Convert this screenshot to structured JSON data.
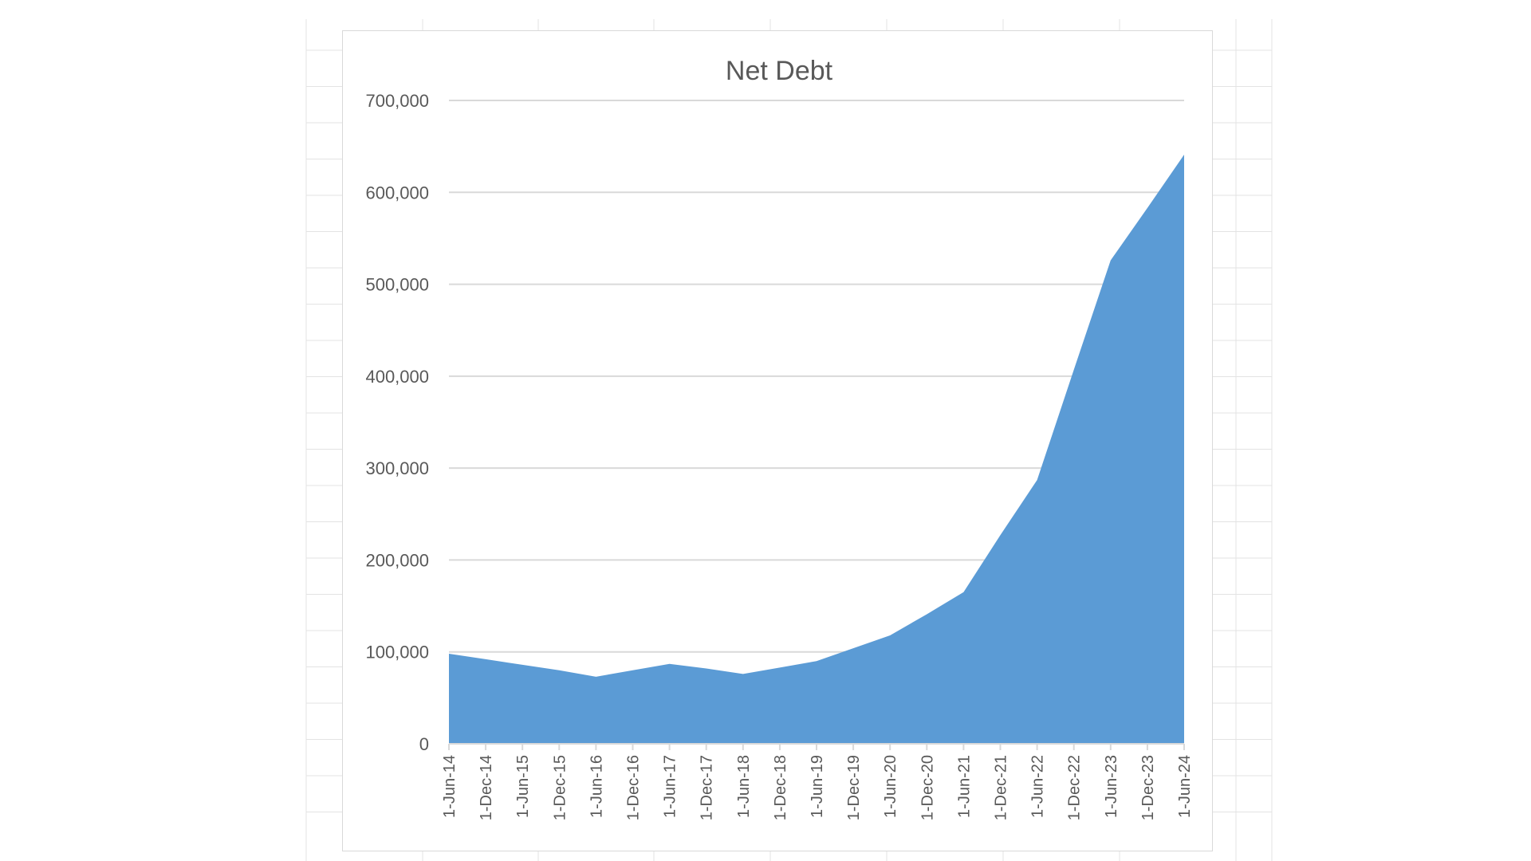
{
  "chart_data": {
    "type": "area",
    "title": "Net Debt",
    "xlabel": "",
    "ylabel": "",
    "categories": [
      "1-Jun-14",
      "1-Dec-14",
      "1-Jun-15",
      "1-Dec-15",
      "1-Jun-16",
      "1-Dec-16",
      "1-Jun-17",
      "1-Dec-17",
      "1-Jun-18",
      "1-Dec-18",
      "1-Jun-19",
      "1-Dec-19",
      "1-Jun-20",
      "1-Dec-20",
      "1-Jun-21",
      "1-Dec-21",
      "1-Jun-22",
      "1-Dec-22",
      "1-Jun-23",
      "1-Dec-23",
      "1-Jun-24"
    ],
    "values": [
      98000,
      92000,
      86000,
      80000,
      73000,
      80000,
      87000,
      82000,
      76000,
      83000,
      90000,
      104000,
      118000,
      141000,
      165000,
      227000,
      287000,
      407000,
      526000,
      583000,
      641000
    ],
    "ylim": [
      0,
      700000
    ],
    "yticks": [
      0,
      100000,
      200000,
      300000,
      400000,
      500000,
      600000,
      700000
    ],
    "ytick_labels": [
      "0",
      "100,000",
      "200,000",
      "300,000",
      "400,000",
      "500,000",
      "600,000",
      "700,000"
    ],
    "grid": true,
    "legend": "none",
    "colors": {
      "fill": "#5b9bd5",
      "gridline": "#d9d9d9",
      "text": "#595959",
      "sheet_grid": "#e3e3e3"
    }
  }
}
